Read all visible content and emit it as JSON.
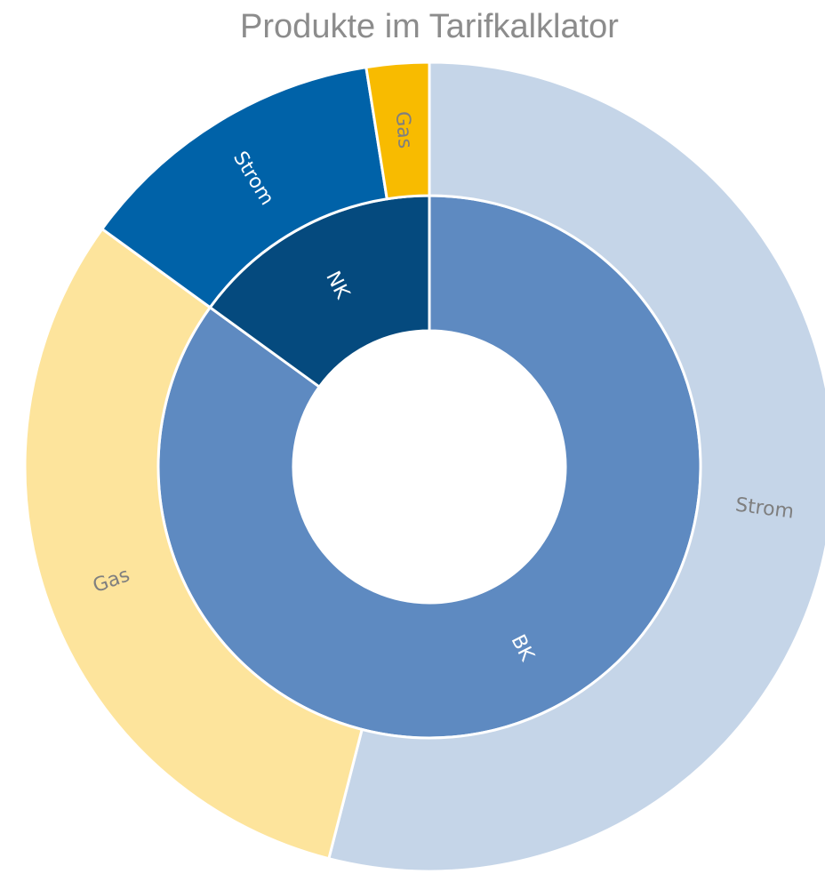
{
  "chart_data": {
    "type": "sunburst",
    "title": "Produkte im Tarifkalklator",
    "data": [
      {
        "name": "BK",
        "value": 85,
        "color": "#5e8ac1",
        "children": [
          {
            "name": "Strom",
            "value": 54,
            "color": "#c5d5e8"
          },
          {
            "name": "Gas",
            "value": 31,
            "color": "#fde49c"
          }
        ]
      },
      {
        "name": "NK",
        "value": 15,
        "color": "#054a7e",
        "children": [
          {
            "name": "Strom",
            "value": 12.5,
            "color": "#0062a8"
          },
          {
            "name": "Gas",
            "value": 2.5,
            "color": "#f8bb00"
          }
        ]
      }
    ]
  }
}
